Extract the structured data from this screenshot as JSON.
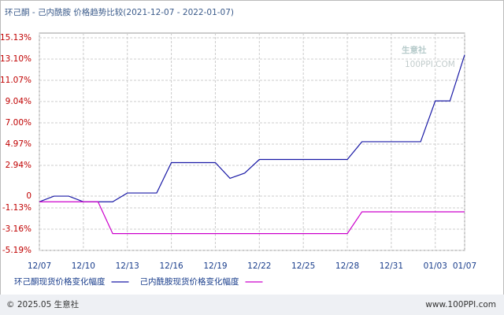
{
  "chart_data": {
    "type": "line",
    "title": "环己酮 - 己内酰胺 价格趋势比较(2021-12-07 - 2022-01-07)",
    "categories": [
      "12/07",
      null,
      null,
      "12/10",
      null,
      null,
      "12/13",
      null,
      null,
      "12/16",
      null,
      null,
      "12/19",
      null,
      null,
      "12/22",
      null,
      null,
      "12/25",
      null,
      null,
      "12/28",
      null,
      null,
      "12/31",
      null,
      null,
      "01/03",
      null,
      "01/07"
    ],
    "series": [
      {
        "name": "环己酮现货价格变化幅度",
        "color": "#1a1aa6",
        "values": [
          -0.54,
          0,
          0,
          -0.54,
          -0.54,
          -0.54,
          0.3,
          0.3,
          0.3,
          3.2,
          3.2,
          3.2,
          3.2,
          1.7,
          2.2,
          3.5,
          3.5,
          3.5,
          3.5,
          3.5,
          3.5,
          3.5,
          5.2,
          5.2,
          5.2,
          5.2,
          5.2,
          9.1,
          9.1,
          13.5
        ]
      },
      {
        "name": "己内酰胺现货价格变化幅度",
        "color": "#cc00cc",
        "values": [
          -0.54,
          -0.54,
          -0.54,
          -0.54,
          -0.54,
          -3.58,
          -3.58,
          -3.58,
          -3.58,
          -3.58,
          -3.58,
          -3.58,
          -3.58,
          -3.58,
          -3.58,
          -3.58,
          -3.58,
          -3.58,
          -3.58,
          -3.58,
          -3.58,
          -3.58,
          -1.5,
          -1.5,
          -1.5,
          -1.5,
          -1.5,
          -1.5,
          -1.5,
          -1.5
        ]
      }
    ],
    "ylim": [
      -5.19,
      15.13
    ],
    "yticks": [
      {
        "value": 15.13,
        "label": "15.13%"
      },
      {
        "value": 13.1,
        "label": "13.10%"
      },
      {
        "value": 11.07,
        "label": "11.07%"
      },
      {
        "value": 9.04,
        "label": "9.04%"
      },
      {
        "value": 7.0,
        "label": "7.00%"
      },
      {
        "value": 4.97,
        "label": "4.97%"
      },
      {
        "value": 2.94,
        "label": "2.94%"
      },
      0,
      {
        "value": -1.13,
        "label": "-1.13%"
      },
      {
        "value": -3.16,
        "label": "-3.16%"
      },
      {
        "value": -5.19,
        "label": "-5.19%"
      }
    ],
    "grid": true,
    "watermark": {
      "name": "生意社",
      "site": "100PPI.COM"
    },
    "footer": {
      "copyright": "© 2025.05 生意社",
      "url": "www.100PPI.com"
    }
  }
}
